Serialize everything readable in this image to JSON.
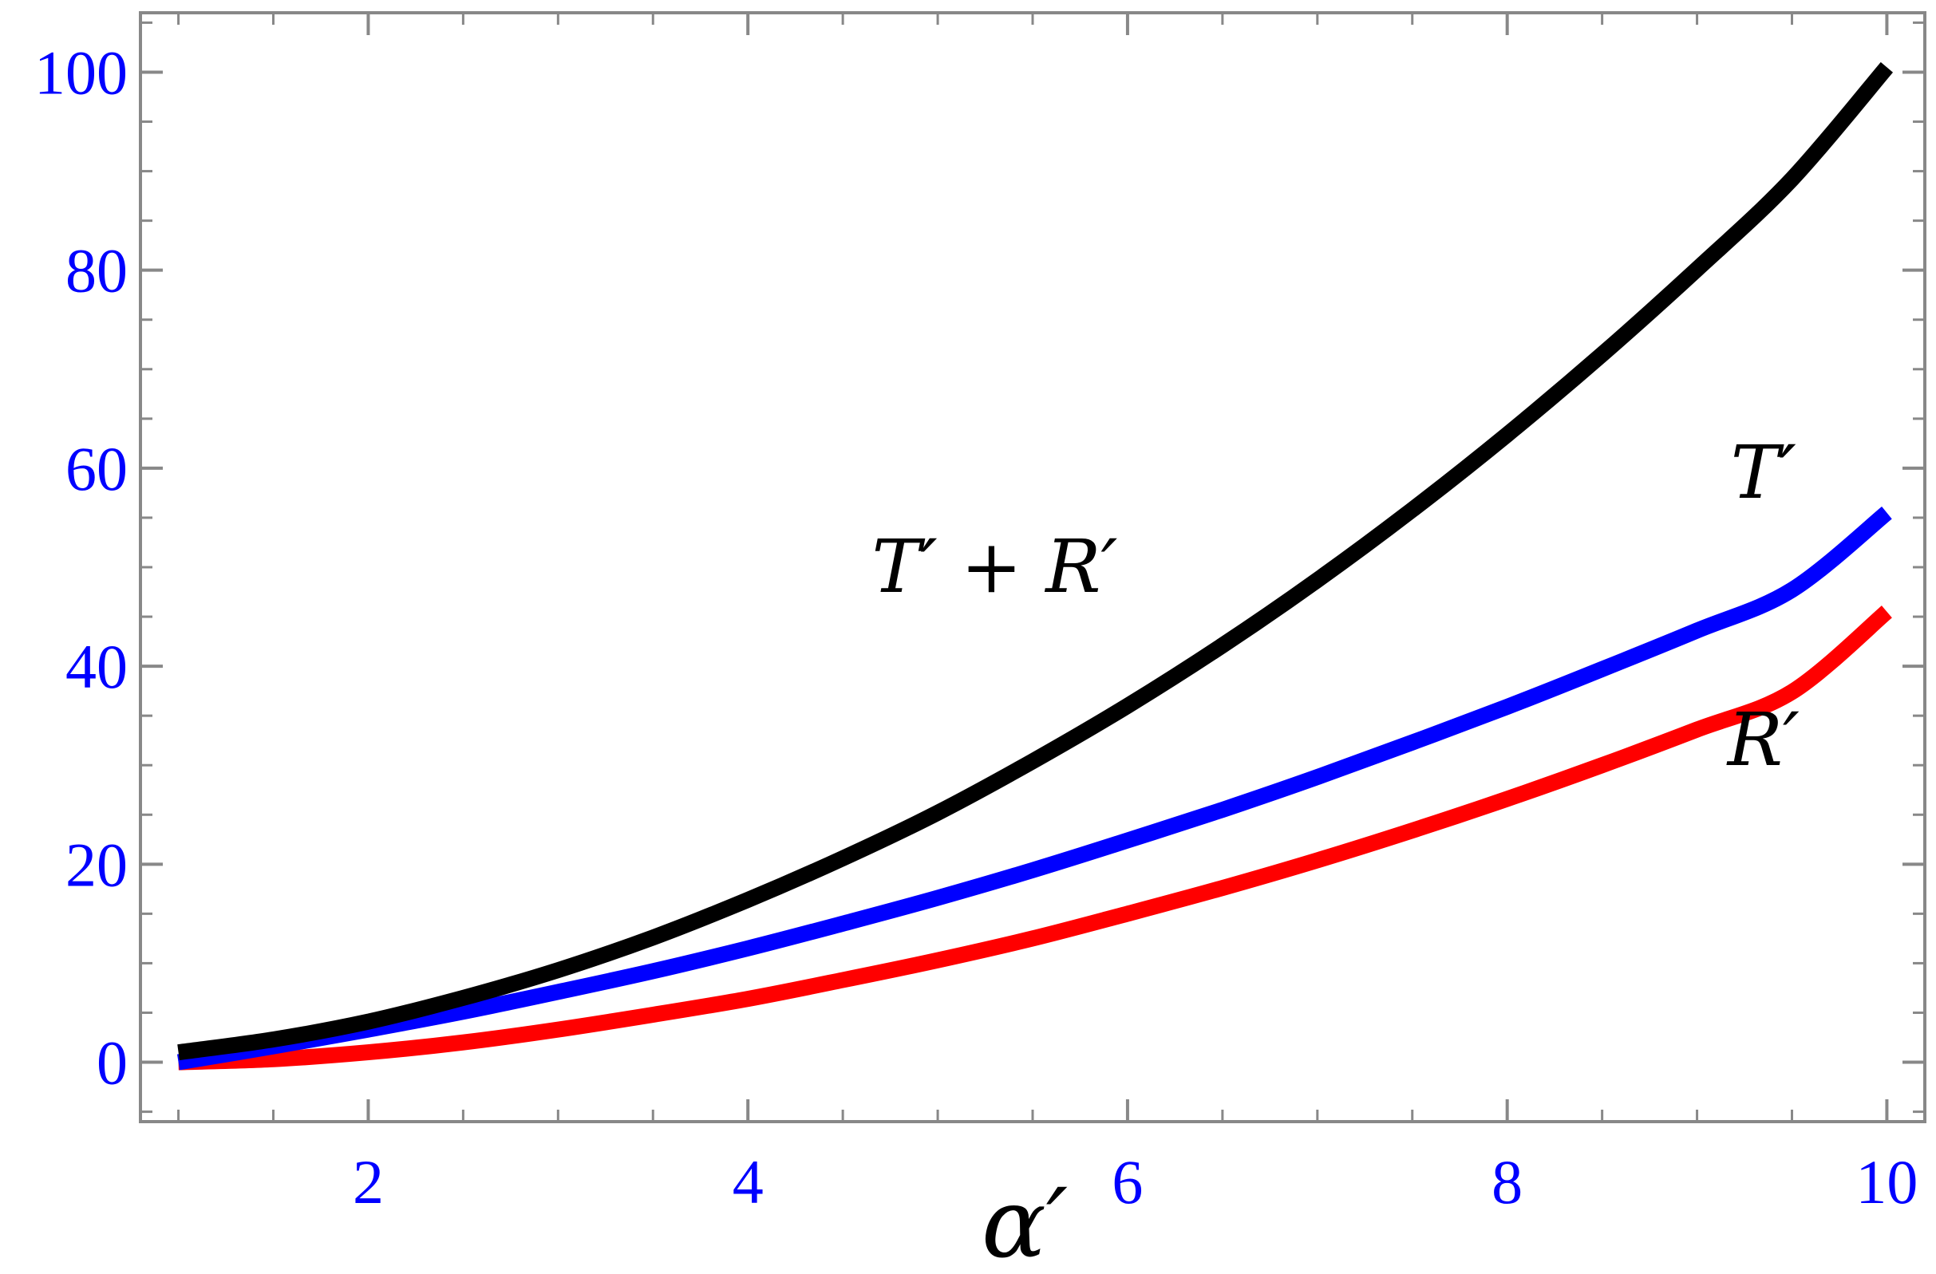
{
  "chart_data": {
    "type": "line",
    "xlabel": "α′",
    "ylabel": "",
    "xlim": [
      0.8,
      10.2
    ],
    "ylim": [
      -6,
      106
    ],
    "x_ticks": [
      2,
      4,
      6,
      8,
      10
    ],
    "y_ticks": [
      0,
      20,
      40,
      60,
      80,
      100
    ],
    "x_tick_labels": [
      "2",
      "4",
      "6",
      "8",
      "10"
    ],
    "y_tick_labels": [
      "0",
      "20",
      "40",
      "60",
      "80",
      "100"
    ],
    "x_minor_step": 0.5,
    "y_minor_step": 5,
    "grid": false,
    "frame": true,
    "colors": {
      "tick_label": "#0000ff",
      "frame": "#888888"
    },
    "series": [
      {
        "name": "T′ + R′",
        "color": "#000000",
        "x": [
          1,
          1.5,
          2,
          2.5,
          3,
          3.5,
          4,
          4.5,
          5,
          5.5,
          6,
          6.5,
          7,
          7.5,
          8,
          8.5,
          9,
          9.5,
          10
        ],
        "y": [
          1.0,
          2.3,
          4.1,
          6.5,
          9.3,
          12.6,
          16.4,
          20.6,
          25.2,
          30.4,
          36.0,
          42.1,
          48.7,
          55.8,
          63.4,
          71.5,
          80.1,
          89.2,
          100.5
        ]
      },
      {
        "name": "T′",
        "color": "#0000ff",
        "x": [
          1,
          1.5,
          2,
          2.5,
          3,
          3.5,
          4,
          4.5,
          5,
          5.5,
          6,
          6.5,
          7,
          7.5,
          8,
          8.5,
          9,
          9.5,
          10
        ],
        "y": [
          0.0,
          1.6,
          3.3,
          5.1,
          7.1,
          9.2,
          11.5,
          14.0,
          16.6,
          19.4,
          22.4,
          25.5,
          28.8,
          32.3,
          35.9,
          39.7,
          43.6,
          47.7,
          55.5
        ]
      },
      {
        "name": "R′",
        "color": "#ff0000",
        "x": [
          1,
          1.5,
          2,
          2.5,
          3,
          3.5,
          4,
          4.5,
          5,
          5.5,
          6,
          6.5,
          7,
          7.5,
          8,
          8.5,
          9,
          9.5,
          10
        ],
        "y": [
          0.0,
          0.3,
          1.0,
          2.0,
          3.3,
          4.8,
          6.4,
          8.3,
          10.3,
          12.5,
          15.0,
          17.6,
          20.4,
          23.4,
          26.6,
          30.0,
          33.6,
          37.4,
          45.5
        ]
      }
    ],
    "annotations": [
      {
        "text": "T′ + R′",
        "x": 5.3,
        "y": 47.5
      },
      {
        "text": "T′",
        "x": 9.35,
        "y": 57
      },
      {
        "text": "R′",
        "x": 9.35,
        "y": 30
      }
    ]
  }
}
